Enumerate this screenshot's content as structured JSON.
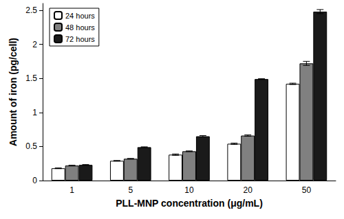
{
  "chart_data": {
    "type": "bar",
    "x_label": "PLL-MNP concentration (μg/mL)",
    "y_label": "Amount of iron (pg/cell)",
    "categories": [
      "1",
      "5",
      "10",
      "20",
      "50"
    ],
    "series": [
      {
        "name": "24 hours",
        "color": "#ffffff",
        "values": [
          0.18,
          0.29,
          0.38,
          0.54,
          1.42
        ],
        "errors": [
          0.005,
          0.005,
          0.01,
          0.01,
          0.01
        ]
      },
      {
        "name": "48 hours",
        "color": "#808080",
        "values": [
          0.22,
          0.32,
          0.43,
          0.66,
          1.72
        ],
        "errors": [
          0.005,
          0.005,
          0.005,
          0.01,
          0.03
        ]
      },
      {
        "name": "72 hours",
        "color": "#1a1a1a",
        "values": [
          0.23,
          0.49,
          0.65,
          1.49,
          2.48
        ],
        "errors": [
          0.005,
          0.005,
          0.01,
          0.005,
          0.03
        ]
      }
    ],
    "ylim": [
      0,
      2.6
    ],
    "yticks": [
      0,
      0.5,
      1,
      1.5,
      2,
      2.5
    ],
    "grid": false,
    "legend": "top-left"
  }
}
